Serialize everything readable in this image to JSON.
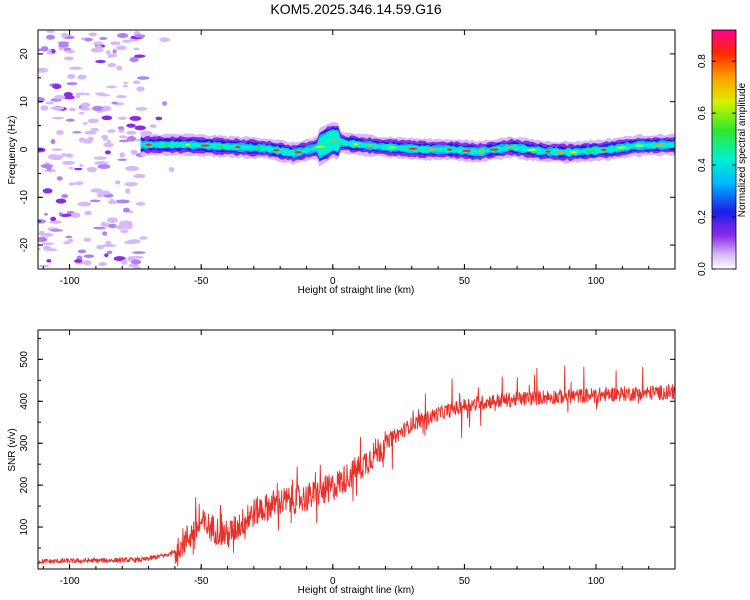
{
  "title": "KOM5.2025.346.14.59.G16",
  "chart_data": [
    {
      "type": "heatmap",
      "xlabel": "Height of straight line (km)",
      "ylabel": "Frequency (Hz)",
      "xlim": [
        -112,
        130
      ],
      "ylim": [
        -25,
        25
      ],
      "x_ticks": [
        -100,
        -50,
        0,
        50,
        100
      ],
      "y_ticks": [
        -20,
        -10,
        0,
        10,
        20
      ],
      "colorbar": {
        "label": "Normalized spectral amplitude",
        "range": [
          0.0,
          0.92
        ],
        "ticks": [
          "0.0",
          "0.2",
          "0.4",
          "0.6",
          "0.8"
        ]
      },
      "ridge_centre": [
        [
          -72,
          1.0
        ],
        [
          -55,
          1.0
        ],
        [
          -40,
          0.6
        ],
        [
          -25,
          0.2
        ],
        [
          -15,
          -0.8
        ],
        [
          -5,
          0.5
        ],
        [
          0,
          2.0
        ],
        [
          5,
          1.3
        ],
        [
          20,
          0.5
        ],
        [
          35,
          0.0
        ],
        [
          45,
          0.0
        ],
        [
          55,
          -0.5
        ],
        [
          68,
          0.5
        ],
        [
          80,
          -0.4
        ],
        [
          90,
          -0.6
        ],
        [
          105,
          0.0
        ],
        [
          115,
          0.8
        ],
        [
          130,
          1.0
        ]
      ],
      "noise_region": [
        -112,
        -72
      ]
    },
    {
      "type": "line",
      "xlabel": "Height of straight line (km)",
      "ylabel": "SNR (v/v)",
      "xlim": [
        -112,
        130
      ],
      "ylim": [
        0,
        570
      ],
      "x_ticks": [
        -100,
        -50,
        0,
        50,
        100
      ],
      "y_ticks": [
        100,
        200,
        300,
        400,
        500
      ],
      "series": [
        {
          "name": "SNR",
          "color": "#e8302a",
          "x": [
            -112,
            -90,
            -72,
            -62,
            -55,
            -50,
            -40,
            -30,
            -20,
            -10,
            0,
            10,
            20,
            30,
            40,
            50,
            60,
            70,
            80,
            90,
            100,
            110,
            120,
            130
          ],
          "values": [
            18,
            20,
            22,
            35,
            75,
            110,
            80,
            135,
            160,
            170,
            195,
            240,
            300,
            345,
            370,
            390,
            400,
            405,
            410,
            412,
            415,
            418,
            420,
            422
          ]
        }
      ]
    }
  ]
}
